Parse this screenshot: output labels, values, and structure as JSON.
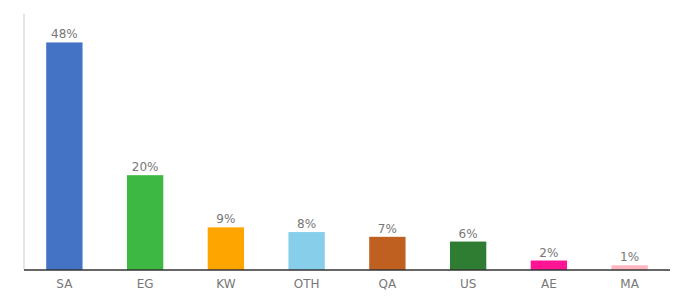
{
  "chart_data": {
    "type": "bar",
    "categories": [
      "SA",
      "EG",
      "KW",
      "OTH",
      "QA",
      "US",
      "AE",
      "MA"
    ],
    "values": [
      48,
      20,
      9,
      8,
      7,
      6,
      2,
      1
    ],
    "value_labels": [
      "48%",
      "20%",
      "9%",
      "8%",
      "7%",
      "6%",
      "2%",
      "1%"
    ],
    "colors": [
      "#4472C4",
      "#3CB843",
      "#FFA500",
      "#87CEEB",
      "#BF6020",
      "#2E7D32",
      "#FF1493",
      "#FFB6C1"
    ],
    "ylim": [
      0,
      54
    ],
    "grid": false,
    "data_labels": true,
    "tick_labels": "x"
  }
}
